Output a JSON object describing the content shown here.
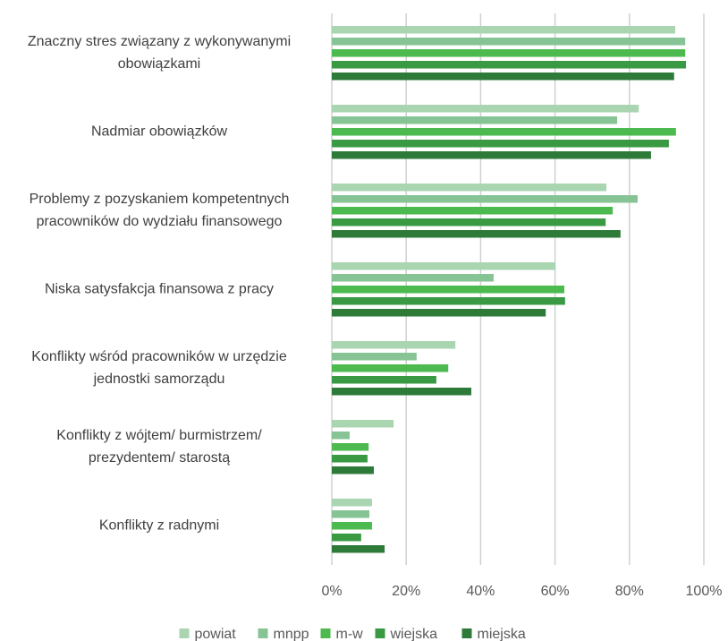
{
  "chart_data": {
    "type": "barh",
    "categories": [
      "Znaczny stres związany z wykonywanymi\nobowiązkami",
      "Nadmiar obowiązków",
      "Problemy z pozyskaniem kompetentnych\npracowników do wydziału finansowego",
      "Niska satysfakcja finansowa z pracy",
      "Konflikty wśród pracowników w urzędzie\njednostki samorządu",
      "Konflikty z wójtem/ burmistrzem/\nprezydentem/ starostą",
      "Konflikty z radnymi"
    ],
    "series": [
      {
        "name": "powiat",
        "color": "#a9d5b0",
        "values": [
          92.3,
          82.5,
          73.8,
          60.1,
          33.2,
          16.6,
          10.8
        ]
      },
      {
        "name": "mnpp",
        "color": "#86c495",
        "values": [
          95,
          76.7,
          82.2,
          43.5,
          22.8,
          4.8,
          10.1
        ]
      },
      {
        "name": "m-w",
        "color": "#4cba4e",
        "values": [
          95,
          92.5,
          75.5,
          62.5,
          31.3,
          9.9,
          10.8
        ]
      },
      {
        "name": "wiejska",
        "color": "#3a9a43",
        "values": [
          95.2,
          90.6,
          73.6,
          62.7,
          28.1,
          9.6,
          7.9
        ]
      },
      {
        "name": "miejska",
        "color": "#2e7a38",
        "values": [
          92,
          85.8,
          77.6,
          57.5,
          37.5,
          11.3,
          14.2
        ]
      }
    ],
    "xlim": [
      0,
      100
    ],
    "xticks": [
      {
        "value": 0,
        "label": "0%"
      },
      {
        "value": 20,
        "label": "20%"
      },
      {
        "value": 40,
        "label": "40%"
      },
      {
        "value": 60,
        "label": "60%"
      },
      {
        "value": 80,
        "label": "80%"
      },
      {
        "value": 100,
        "label": "100%"
      }
    ],
    "grid": true,
    "legend": "bottom"
  }
}
